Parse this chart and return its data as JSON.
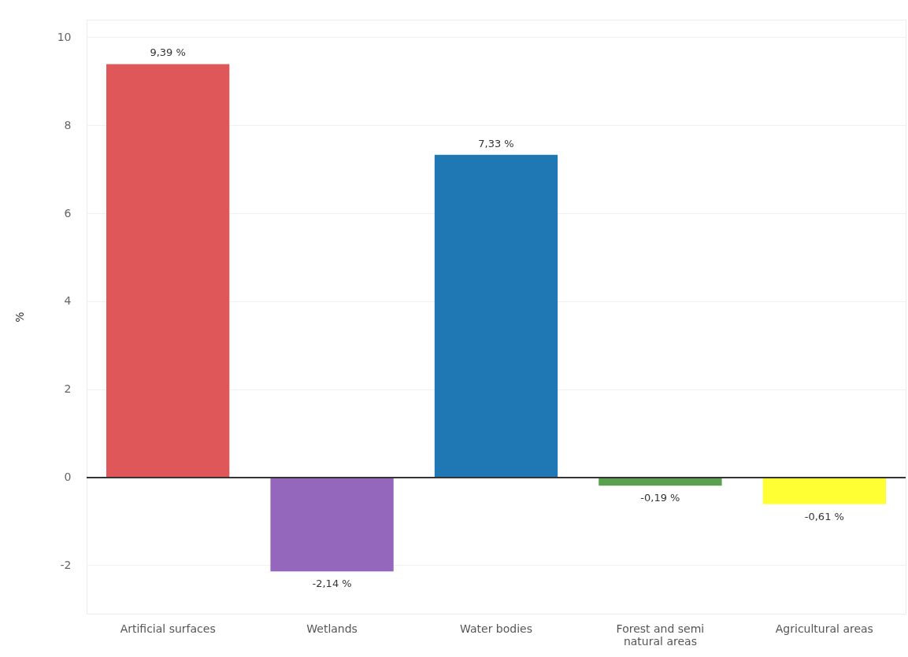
{
  "chart_data": {
    "type": "bar",
    "ylabel": "%",
    "categories": [
      "Artificial surfaces",
      "Wetlands",
      "Water bodies",
      "Forest and semi natural areas",
      "Agricultural areas"
    ],
    "values": [
      9.39,
      -2.14,
      7.33,
      -0.19,
      -0.61
    ],
    "colors": [
      "#e05759",
      "#9467bd",
      "#1f77b4",
      "#59a14f",
      "#ffff33"
    ],
    "value_labels": [
      "9,39 %",
      "-2,14 %",
      "7,33 %",
      "-0,19 %",
      "-0,61 %"
    ],
    "ylim": [
      -3.1,
      10.4
    ],
    "yticks": [
      -2,
      0,
      2,
      4,
      6,
      8,
      10
    ],
    "grid": "y"
  }
}
